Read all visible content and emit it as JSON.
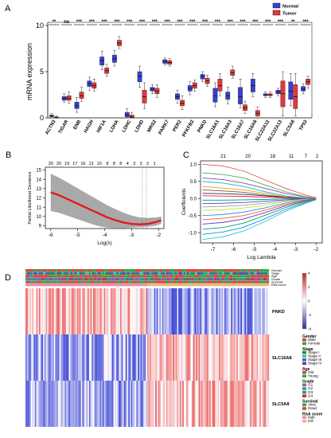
{
  "figure": {
    "panels": [
      "A",
      "B",
      "C",
      "D"
    ]
  },
  "colors": {
    "normal": "#3a3fd6",
    "tumor": "#e2383c",
    "red_curve": "#e21a1a",
    "band": "#a9a9a9"
  },
  "chart_data": [
    {
      "panel": "A",
      "type": "box",
      "ylabel": "mRNA expression",
      "ylim": [
        0,
        10
      ],
      "yticks": [
        0,
        5,
        10
      ],
      "legend": {
        "position": "top-right",
        "entries": [
          "Normal",
          "Tumor"
        ]
      },
      "categories": [
        "ACTN3",
        "TIGAR",
        "ENB",
        "HAGH",
        "HIF1A",
        "LDHA",
        "LDHC",
        "LDHD",
        "MRS2",
        "PARK7",
        "PER2",
        "PFKFB2",
        "PNKD",
        "SLC16A1",
        "SLC16A3",
        "SLC16A7",
        "SLC16A8",
        "SLC22A12",
        "SLC22A13",
        "SLC5A8",
        "TP53"
      ],
      "significance": [
        "**",
        "ns",
        "***",
        "***",
        "***",
        "***",
        "***",
        "***",
        "***",
        "***",
        "***",
        "***",
        "***",
        "***",
        "***",
        "***",
        "***",
        "***",
        "***",
        "**",
        "***"
      ],
      "series": [
        {
          "name": "Normal",
          "boxes": [
            [
              0.1,
              0.15,
              0.2,
              0.3,
              0.5
            ],
            [
              1.7,
              1.9,
              2.1,
              2.3,
              2.6
            ],
            [
              0.6,
              1.0,
              1.3,
              1.7,
              2.2
            ],
            [
              3.0,
              3.4,
              3.7,
              4.0,
              4.4
            ],
            [
              5.2,
              5.7,
              6.2,
              6.6,
              7.2
            ],
            [
              5.6,
              6.0,
              6.4,
              6.8,
              7.3
            ],
            [
              0.0,
              0.1,
              0.3,
              0.6,
              1.0
            ],
            [
              3.3,
              3.9,
              4.5,
              5.0,
              5.6
            ],
            [
              2.6,
              2.9,
              3.1,
              3.3,
              3.6
            ],
            [
              5.7,
              5.9,
              6.1,
              6.3,
              6.5
            ],
            [
              1.6,
              2.0,
              2.3,
              2.6,
              3.0
            ],
            [
              2.5,
              2.9,
              3.2,
              3.5,
              3.9
            ],
            [
              3.9,
              4.2,
              4.5,
              4.7,
              5.0
            ],
            [
              1.2,
              1.7,
              2.4,
              3.2,
              3.8
            ],
            [
              1.5,
              2.0,
              2.4,
              2.8,
              3.3
            ],
            [
              1.1,
              1.5,
              2.3,
              3.3,
              4.2
            ],
            [
              2.3,
              2.8,
              3.5,
              4.2,
              4.8
            ],
            [
              2.2,
              2.4,
              2.5,
              2.6,
              2.8
            ],
            [
              2.4,
              2.6,
              2.8,
              3.0,
              3.2
            ],
            [
              1.3,
              2.0,
              2.9,
              3.9,
              4.8
            ],
            [
              2.6,
              2.9,
              3.1,
              3.4,
              3.7
            ]
          ]
        },
        {
          "name": "Tumor",
          "boxes": [
            [
              0.0,
              0.0,
              0.05,
              0.1,
              0.2
            ],
            [
              1.6,
              1.9,
              2.1,
              2.4,
              2.8
            ],
            [
              1.8,
              2.1,
              2.4,
              2.8,
              3.3
            ],
            [
              2.9,
              3.2,
              3.5,
              3.8,
              4.2
            ],
            [
              4.5,
              4.8,
              5.1,
              5.4,
              5.8
            ],
            [
              7.5,
              7.8,
              8.1,
              8.4,
              8.8
            ],
            [
              0.0,
              0.05,
              0.1,
              0.3,
              0.6
            ],
            [
              1.0,
              1.6,
              2.3,
              3.0,
              3.8
            ],
            [
              2.2,
              2.6,
              2.9,
              3.2,
              3.6
            ],
            [
              5.6,
              5.8,
              6.0,
              6.2,
              6.4
            ],
            [
              0.9,
              1.3,
              1.6,
              1.9,
              2.4
            ],
            [
              2.9,
              3.2,
              3.5,
              3.8,
              4.1
            ],
            [
              3.4,
              3.7,
              4.0,
              4.3,
              4.6
            ],
            [
              2.4,
              2.9,
              3.5,
              4.2,
              4.8
            ],
            [
              4.3,
              4.6,
              4.9,
              5.2,
              5.6
            ],
            [
              0.5,
              0.8,
              1.1,
              1.4,
              1.8
            ],
            [
              0.0,
              0.2,
              0.5,
              0.8,
              1.2
            ],
            [
              2.2,
              2.4,
              2.5,
              2.6,
              2.8
            ],
            [
              0.2,
              1.2,
              2.6,
              4.0,
              5.0
            ],
            [
              0.2,
              1.0,
              2.3,
              3.6,
              4.8
            ],
            [
              3.2,
              3.6,
              3.9,
              4.2,
              4.5
            ]
          ]
        }
      ]
    },
    {
      "panel": "B",
      "type": "line",
      "xlabel": "Log(λ)",
      "ylabel": "Partial Likelihood Deviance",
      "xlim": [
        -6.2,
        -1.8
      ],
      "ylim": [
        8.7,
        15.3
      ],
      "xticks": [
        -6,
        -5,
        -4,
        -3,
        -2
      ],
      "yticks": [
        9,
        10,
        11,
        12,
        13,
        14,
        15
      ],
      "top_labels": [
        "20",
        "20",
        "19",
        "17",
        "16",
        "13",
        "10",
        "8",
        "8",
        "8",
        "4",
        "3",
        "3",
        "2",
        "1"
      ],
      "top_label_x": [
        -6.0,
        -5.7,
        -5.4,
        -5.1,
        -4.8,
        -4.5,
        -4.2,
        -3.9,
        -3.65,
        -3.4,
        -3.15,
        -2.9,
        -2.65,
        -2.4,
        -2.15
      ],
      "vlines": [
        -2.6,
        -2.45
      ],
      "series": [
        {
          "name": "",
          "x": [
            -6.0,
            -5.7,
            -5.4,
            -5.1,
            -4.8,
            -4.5,
            -4.2,
            -3.9,
            -3.6,
            -3.3,
            -3.0,
            -2.7,
            -2.4,
            -2.1,
            -1.9
          ],
          "y": [
            12.6,
            12.3,
            11.9,
            11.5,
            11.1,
            10.7,
            10.3,
            9.9,
            9.6,
            9.35,
            9.2,
            9.15,
            9.2,
            9.4,
            9.6
          ]
        }
      ],
      "band": {
        "upper": [
          14.6,
          14.2,
          13.7,
          13.2,
          12.7,
          12.2,
          11.7,
          11.2,
          10.8,
          10.4,
          10.1,
          9.9,
          9.85,
          9.9,
          10.0
        ],
        "lower": [
          10.6,
          10.4,
          10.1,
          9.8,
          9.5,
          9.2,
          8.95,
          8.8,
          8.75,
          8.75,
          8.8,
          8.85,
          8.9,
          9.0,
          9.2
        ]
      }
    },
    {
      "panel": "C",
      "type": "line",
      "xlabel": "Log Lambda",
      "ylabel": "Coefficients",
      "xlim": [
        -7.6,
        -1.7
      ],
      "ylim": [
        -1.3,
        1.1
      ],
      "xticks": [
        -7,
        -6,
        -5,
        -4,
        -3,
        -2
      ],
      "yticks": [
        -1.0,
        -0.5,
        0.0,
        0.5,
        1.0
      ],
      "top_labels": [
        "21",
        "20",
        "18",
        "11",
        "7",
        "2"
      ],
      "top_label_x": [
        -6.5,
        -5.3,
        -4.1,
        -3.2,
        -2.5,
        -1.95
      ],
      "x": [
        -7.5,
        -6.5,
        -5.5,
        -4.5,
        -3.5,
        -2.5,
        -2.0
      ],
      "series": [
        {
          "name": "",
          "color": "#e05555",
          "values": [
            1.0,
            0.95,
            0.8,
            0.55,
            0.3,
            0.1,
            0.02
          ]
        },
        {
          "name": "",
          "color": "#4caf50",
          "values": [
            0.75,
            0.7,
            0.6,
            0.4,
            0.2,
            0.05,
            0.0
          ]
        },
        {
          "name": "",
          "color": "#8e44ad",
          "values": [
            0.6,
            0.55,
            0.45,
            0.3,
            0.15,
            0.04,
            0.0
          ]
        },
        {
          "name": "",
          "color": "#00bcd4",
          "values": [
            0.5,
            0.45,
            0.35,
            0.2,
            0.08,
            0.01,
            0.0
          ]
        },
        {
          "name": "",
          "color": "#ff9800",
          "values": [
            0.35,
            0.3,
            0.25,
            0.15,
            0.05,
            0.0,
            0.0
          ]
        },
        {
          "name": "",
          "color": "#795548",
          "values": [
            0.25,
            0.22,
            0.18,
            0.1,
            0.04,
            0.0,
            0.0
          ]
        },
        {
          "name": "",
          "color": "#333333",
          "values": [
            0.15,
            0.14,
            0.12,
            0.08,
            0.03,
            0.0,
            0.0
          ]
        },
        {
          "name": "",
          "color": "#e91e63",
          "values": [
            0.08,
            0.07,
            0.06,
            0.04,
            0.02,
            0.0,
            0.0
          ]
        },
        {
          "name": "",
          "color": "#009688",
          "values": [
            -0.05,
            -0.05,
            -0.04,
            -0.03,
            -0.01,
            0.0,
            0.0
          ]
        },
        {
          "name": "",
          "color": "#3f51b5",
          "values": [
            -0.15,
            -0.14,
            -0.12,
            -0.08,
            -0.04,
            -0.01,
            0.0
          ]
        },
        {
          "name": "",
          "color": "#9e9e9e",
          "values": [
            -0.25,
            -0.23,
            -0.2,
            -0.14,
            -0.07,
            -0.02,
            0.0
          ]
        },
        {
          "name": "",
          "color": "#cddc39",
          "values": [
            -0.35,
            -0.33,
            -0.28,
            -0.2,
            -0.1,
            -0.03,
            0.0
          ]
        },
        {
          "name": "",
          "color": "#2196f3",
          "values": [
            -0.5,
            -0.47,
            -0.4,
            -0.28,
            -0.14,
            -0.04,
            0.0
          ]
        },
        {
          "name": "",
          "color": "#ff5722",
          "values": [
            -0.62,
            -0.58,
            -0.5,
            -0.35,
            -0.18,
            -0.05,
            0.0
          ]
        },
        {
          "name": "",
          "color": "#673ab7",
          "values": [
            -0.75,
            -0.7,
            -0.6,
            -0.42,
            -0.22,
            -0.07,
            -0.01
          ]
        },
        {
          "name": "",
          "color": "#00a86b",
          "values": [
            -0.9,
            -0.85,
            -0.72,
            -0.5,
            -0.27,
            -0.09,
            -0.02
          ]
        },
        {
          "name": "",
          "color": "#1e88e5",
          "values": [
            -1.05,
            -0.98,
            -0.84,
            -0.6,
            -0.33,
            -0.12,
            -0.03
          ]
        },
        {
          "name": "",
          "color": "#26c6da",
          "values": [
            -1.2,
            -1.12,
            -0.95,
            -0.68,
            -0.38,
            -0.14,
            -0.04
          ]
        }
      ]
    },
    {
      "panel": "D",
      "type": "heatmap",
      "annotation_rows": [
        "Gender",
        "Stage",
        "Age",
        "Grade",
        "Survival",
        "Risk score"
      ],
      "genes": [
        "PNKD",
        "SLC16A8",
        "SLC5A8"
      ],
      "colorbar": {
        "ticks": [
          "4",
          "2",
          "0",
          "-2",
          "-4"
        ]
      },
      "legend": [
        {
          "title": "Gender",
          "items": [
            {
              "label": "Male",
              "color": "#e23b3b"
            },
            {
              "label": "Female",
              "color": "#2ca84a"
            }
          ]
        },
        {
          "title": "Stage",
          "items": [
            {
              "label": "Stage I",
              "color": "#1f8a3d"
            },
            {
              "label": "Stage II",
              "color": "#3dbfa5"
            },
            {
              "label": "Stage III",
              "color": "#2f6fb3"
            },
            {
              "label": "Stage IV",
              "color": "#6a3d9a"
            }
          ]
        },
        {
          "title": "Age",
          "items": [
            {
              "label": "Old",
              "color": "#e23b3b"
            },
            {
              "label": "Young",
              "color": "#2ca84a"
            }
          ]
        },
        {
          "title": "Grade",
          "items": [
            {
              "label": "G1",
              "color": "#9b59b6"
            },
            {
              "label": "G2",
              "color": "#27ae60"
            },
            {
              "label": "G3",
              "color": "#2e86c1"
            },
            {
              "label": "G4",
              "color": "#c0392b"
            }
          ]
        },
        {
          "title": "Survival",
          "items": [
            {
              "label": "Alive",
              "color": "#2ca84a"
            },
            {
              "label": "Dead",
              "color": "#e23b3b"
            }
          ]
        },
        {
          "title": "Risk score",
          "items": [
            {
              "label": "high",
              "color": "#f08aa8"
            },
            {
              "label": "low",
              "color": "#f2b37a"
            }
          ]
        }
      ]
    }
  ]
}
